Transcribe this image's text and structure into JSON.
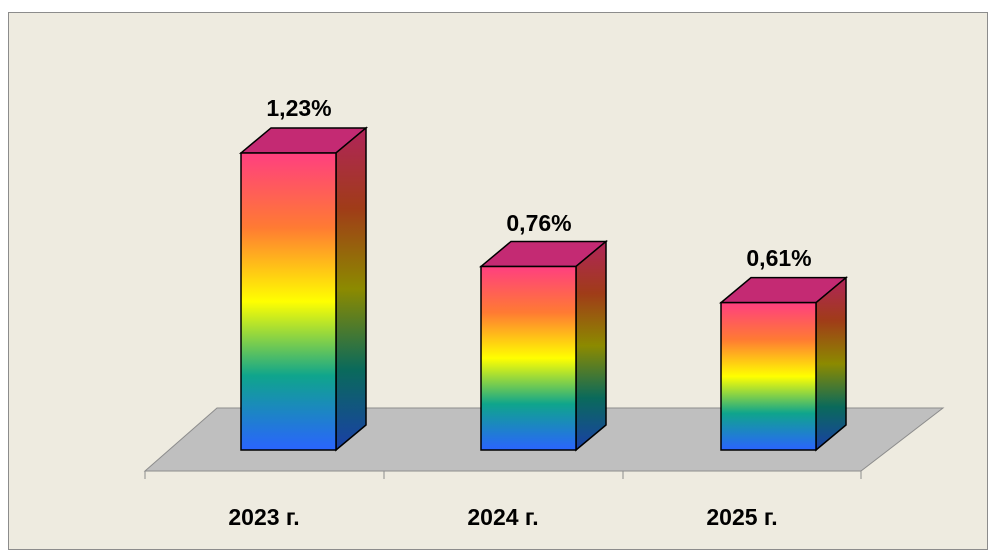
{
  "chart_data": {
    "type": "bar",
    "style": "3d-column",
    "categories": [
      "2023 г.",
      "2024 г.",
      "2025 г."
    ],
    "values": [
      1.23,
      0.76,
      0.61
    ],
    "data_labels": [
      "1,23%",
      "0,76%",
      "0,61%"
    ],
    "title": "",
    "xlabel": "",
    "ylabel": "",
    "ylim": [
      0,
      1.4
    ],
    "grid": false,
    "legend": "none",
    "floor_color": "#bfbfbf",
    "background_color": "#eeebe0",
    "bar_gradient": [
      "#ff3f80",
      "#ff7a33",
      "#ffff00",
      "#0fa58c",
      "#2a64ff"
    ]
  }
}
